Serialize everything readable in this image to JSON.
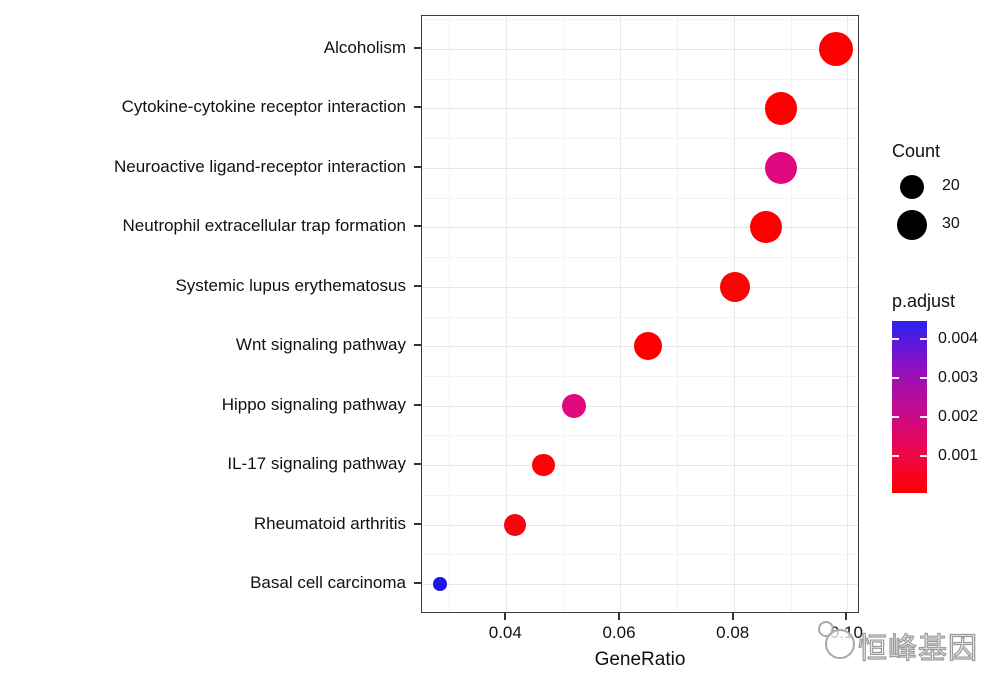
{
  "watermark": {
    "text": "恒峰基因"
  },
  "chart_data": {
    "type": "scatter",
    "subtype": "dotplot-enrichment",
    "title": "",
    "xlabel": "GeneRatio",
    "ylabel": "",
    "grid": true,
    "x_axis": {
      "ticks": [
        0.04,
        0.06,
        0.08,
        0.1
      ],
      "tick_labels": [
        "0.04",
        "0.06",
        "0.08",
        "0.10"
      ],
      "minor_ticks": [
        0.03,
        0.05,
        0.07,
        0.09
      ],
      "xlim": [
        0.0252,
        0.1024
      ]
    },
    "categories": [
      "Alcoholism",
      "Cytokine-cytokine receptor interaction",
      "Neuroactive ligand-receptor interaction",
      "Neutrophil extracellular trap formation",
      "Systemic lupus erythematosus",
      "Wnt signaling pathway",
      "Hippo signaling pathway",
      "IL-17 signaling pathway",
      "Rheumatoid arthritis",
      "Basal cell carcinoma"
    ],
    "points": [
      {
        "pathway": "Alcoholism",
        "gene_ratio": 0.098,
        "count_est": 36,
        "p_adjust_est": 0.0002,
        "color": "#fe0000",
        "radius_px": 17.3
      },
      {
        "pathway": "Cytokine-cytokine receptor interaction",
        "gene_ratio": 0.0883,
        "count_est": 33,
        "p_adjust_est": 0.0003,
        "color": "#fe0000",
        "radius_px": 16.3
      },
      {
        "pathway": "Neuroactive ligand-receptor interaction",
        "gene_ratio": 0.0883,
        "count_est": 33,
        "p_adjust_est": 0.002,
        "color": "#e0087e",
        "radius_px": 16.3
      },
      {
        "pathway": "Neutrophil extracellular trap formation",
        "gene_ratio": 0.0857,
        "count_est": 32,
        "p_adjust_est": 0.0003,
        "color": "#fe0000",
        "radius_px": 16
      },
      {
        "pathway": "Systemic lupus erythematosus",
        "gene_ratio": 0.0802,
        "count_est": 30,
        "p_adjust_est": 0.0004,
        "color": "#fb0404",
        "radius_px": 15
      },
      {
        "pathway": "Wnt signaling pathway",
        "gene_ratio": 0.0649,
        "count_est": 26,
        "p_adjust_est": 0.0004,
        "color": "#fe0000",
        "radius_px": 14
      },
      {
        "pathway": "Hippo signaling pathway",
        "gene_ratio": 0.0519,
        "count_est": 20,
        "p_adjust_est": 0.002,
        "color": "#e0087e",
        "radius_px": 12
      },
      {
        "pathway": "IL-17 signaling pathway",
        "gene_ratio": 0.0466,
        "count_est": 18,
        "p_adjust_est": 0.0006,
        "color": "#fc0208",
        "radius_px": 11.4
      },
      {
        "pathway": "Rheumatoid arthritis",
        "gene_ratio": 0.0415,
        "count_est": 17,
        "p_adjust_est": 0.0008,
        "color": "#f9030f",
        "radius_px": 11
      },
      {
        "pathway": "Basal cell carcinoma",
        "gene_ratio": 0.0283,
        "count_est": 5,
        "p_adjust_est": 0.0044,
        "color": "#1f16ec",
        "radius_px": 6.8
      }
    ],
    "legend_size": {
      "title": "Count",
      "dot_color": "#000000",
      "items": [
        {
          "label": "20",
          "value": 20,
          "radius_px": 12
        },
        {
          "label": "30",
          "value": 30,
          "radius_px": 15
        }
      ]
    },
    "legend_color": {
      "title": "p.adjust",
      "ticks": [
        {
          "label": "0.004",
          "value": 0.004
        },
        {
          "label": "0.003",
          "value": 0.003
        },
        {
          "label": "0.002",
          "value": 0.002
        },
        {
          "label": "0.001",
          "value": 0.001
        }
      ],
      "bar_range": [
        0.00445,
        5e-05
      ],
      "gradient_top_to_bottom": [
        "#2b20f2",
        "#8a11c4",
        "#c00c92",
        "#ee0650",
        "#fe0000"
      ]
    }
  }
}
